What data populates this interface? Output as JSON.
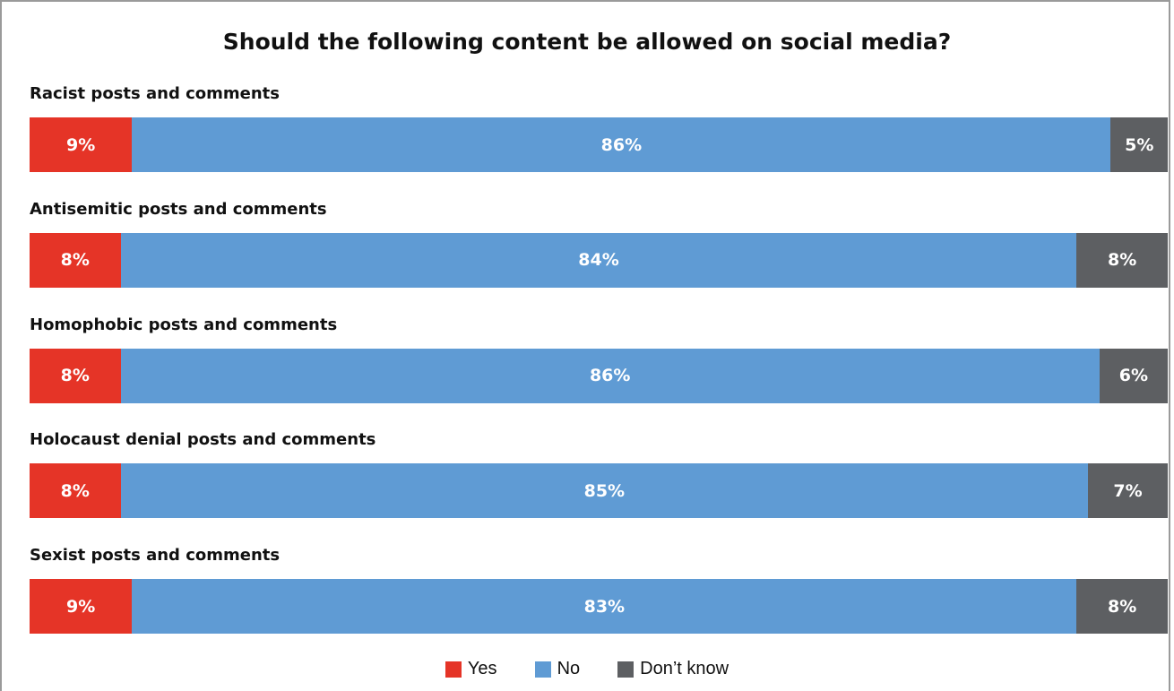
{
  "chart_data": {
    "type": "bar",
    "orientation": "horizontal-stacked-100",
    "title": "Should the following content be allowed on social media?",
    "categories": [
      "Racist posts and comments",
      "Antisemitic posts and comments",
      "Homophobic posts and comments",
      "Holocaust denial posts and comments",
      "Sexist posts and comments"
    ],
    "series": [
      {
        "name": "Yes",
        "color": "#e53427",
        "values": [
          9,
          8,
          8,
          8,
          9
        ]
      },
      {
        "name": "No",
        "color": "#5f9bd4",
        "values": [
          86,
          84,
          86,
          85,
          83
        ]
      },
      {
        "name": "Don’t know",
        "color": "#5d5f62",
        "values": [
          5,
          8,
          6,
          7,
          8
        ]
      }
    ],
    "data_labels": [
      [
        "9%",
        "86%",
        "5%"
      ],
      [
        "8%",
        "84%",
        "8%"
      ],
      [
        "8%",
        "86%",
        "6%"
      ],
      [
        "8%",
        "85%",
        "7%"
      ],
      [
        "9%",
        "83%",
        "8%"
      ]
    ],
    "legend_position": "bottom-center",
    "grid": false
  }
}
